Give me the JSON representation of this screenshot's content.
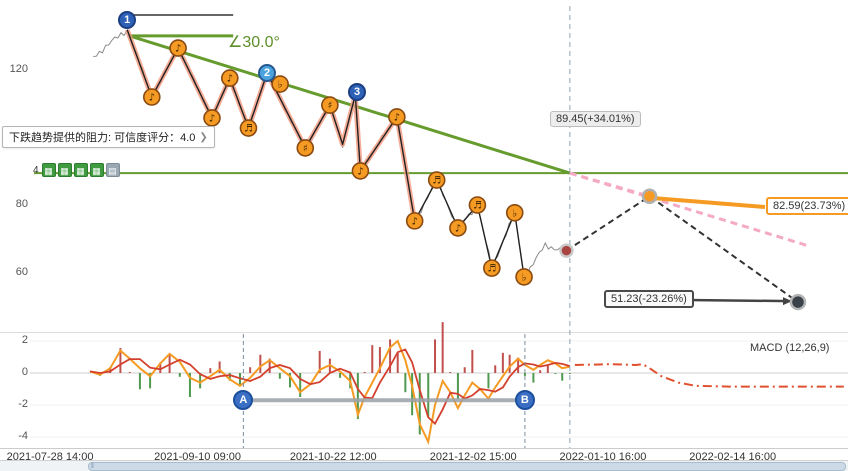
{
  "tooltip": {
    "text": "下跌趋势提供的阻力: 可信度评分：4.0"
  },
  "toolbar": {
    "count": "4",
    "icons": [
      "▦",
      "▦",
      "▦",
      "▦",
      "▤"
    ]
  },
  "icons": {
    "expand_arrow": "❯",
    "grip": "‖"
  },
  "labels": {
    "angle": "∠30.0°",
    "level": "89.45(+34.01%)",
    "target_mid": "82.59(23.73%)",
    "target_low": "51.23(-23.26%)",
    "macd": "MACD (12,26,9)"
  },
  "markers": {
    "m1": "1",
    "m2": "2",
    "m3": "3",
    "a": "A",
    "b": "B"
  },
  "chart_data": {
    "type": "line",
    "x_axis": {
      "ticks": [
        {
          "label": "2021-07-28 14:00",
          "x": 0.059
        },
        {
          "label": "2021-09-10 09:00",
          "x": 0.233
        },
        {
          "label": "2021-10-22 12:00",
          "x": 0.393
        },
        {
          "label": "2021-12-02 15:00",
          "x": 0.558
        },
        {
          "label": "2022-01-10 16:00",
          "x": 0.711
        },
        {
          "label": "2022-02-14 16:00",
          "x": 0.864
        }
      ]
    },
    "main_panel": {
      "ylim": [
        43,
        141
      ],
      "yticks": [
        120,
        80,
        60
      ],
      "resistance_level": 89.45,
      "trend_angle_deg": 30.0,
      "trend_line": {
        "x1": 0.153,
        "p1": 130.1,
        "x2": 0.672,
        "p2": 89.45
      },
      "angle_ref_line": {
        "x1": 0.153,
        "x2": 0.275,
        "p": 130.1
      },
      "peak_ref_line": {
        "x1": 0.15,
        "x2": 0.275,
        "p": 136.3
      },
      "price_start": {
        "x": 0.11,
        "p": 124.0
      },
      "zigzag": [
        [
          0.15,
          131.9,
          ""
        ],
        [
          0.179,
          112.0,
          "♪"
        ],
        [
          0.21,
          126.5,
          "♪"
        ],
        [
          0.25,
          105.8,
          "♪"
        ],
        [
          0.271,
          117.6,
          "♪"
        ],
        [
          0.293,
          102.8,
          "♬"
        ],
        [
          0.315,
          119.1,
          "♭"
        ],
        [
          0.36,
          96.9,
          "♯"
        ],
        [
          0.389,
          109.6,
          "♯"
        ],
        [
          0.404,
          98.0,
          ""
        ],
        [
          0.419,
          112.6,
          ""
        ],
        [
          0.425,
          90.1,
          "♪"
        ],
        [
          0.468,
          106.1,
          "♪"
        ],
        [
          0.489,
          75.3,
          "♪"
        ],
        [
          0.515,
          87.4,
          "♬"
        ],
        [
          0.54,
          73.2,
          "♪"
        ],
        [
          0.563,
          80.0,
          "♬"
        ],
        [
          0.58,
          61.3,
          "♬"
        ],
        [
          0.607,
          77.7,
          "♭"
        ],
        [
          0.618,
          58.7,
          "♭"
        ]
      ],
      "salmon_end_index": 13,
      "price_tail": [
        [
          0.643,
          68.0
        ],
        [
          0.668,
          66.5
        ]
      ],
      "markers": [
        {
          "label": "1",
          "x": 0.15,
          "p": 134.8,
          "color": "#2e62b8"
        },
        {
          "label": "2",
          "x": 0.315,
          "p": 119.1,
          "color": "#4aa3df"
        },
        {
          "label": "3",
          "x": 0.421,
          "p": 113.5,
          "color": "#2e62b8"
        }
      ],
      "current_point": {
        "x": 0.668,
        "p": 66.5
      },
      "divider_x": 0.672,
      "projections": {
        "apex": {
          "x": 0.672,
          "p": 89.45
        },
        "mid": {
          "x": 0.766,
          "p": 82.59
        },
        "low": {
          "x": 0.941,
          "p": 51.23
        },
        "pink_end": {
          "x": 0.952,
          "p": 68.0
        }
      }
    },
    "macd_panel": {
      "ylim": [
        -5,
        2.5
      ],
      "yticks": [
        2,
        0,
        -2,
        -4
      ],
      "x": [
        0.106,
        0.118,
        0.13,
        0.142,
        0.153,
        0.165,
        0.177,
        0.189,
        0.2,
        0.212,
        0.224,
        0.236,
        0.248,
        0.259,
        0.271,
        0.283,
        0.295,
        0.307,
        0.318,
        0.33,
        0.342,
        0.354,
        0.366,
        0.377,
        0.389,
        0.401,
        0.413,
        0.422,
        0.43,
        0.439,
        0.448,
        0.46,
        0.469,
        0.478,
        0.486,
        0.495,
        0.505,
        0.513,
        0.522,
        0.531,
        0.54,
        0.548,
        0.557,
        0.566,
        0.576,
        0.584,
        0.593,
        0.601,
        0.611,
        0.619,
        0.629,
        0.637,
        0.646,
        0.655,
        0.663,
        0.672
      ],
      "dif": [
        0.1,
        -0.1,
        0.3,
        1.4,
        0.9,
        0.3,
        -0.2,
        0.6,
        1.2,
        0.7,
        -0.3,
        -0.6,
        -0.2,
        0.2,
        -0.4,
        -0.8,
        -0.3,
        0.4,
        0.8,
        0.3,
        -0.2,
        -1.2,
        -0.7,
        0.2,
        0.5,
        0.1,
        -0.5,
        -2.6,
        -1.5,
        -0.6,
        0.3,
        1.6,
        2.0,
        0.8,
        -0.8,
        -3.2,
        -4.3,
        -2.0,
        -0.5,
        -1.2,
        -2.2,
        -1.4,
        -0.6,
        -1.0,
        -1.6,
        -0.9,
        -0.2,
        0.4,
        0.9,
        0.5,
        0.2,
        0.5,
        0.8,
        0.6,
        0.3,
        0.4
      ],
      "forecast_x": [
        0.678,
        0.72,
        0.75,
        0.758,
        0.766,
        0.78,
        0.8,
        0.82,
        0.86,
        0.92,
        0.995
      ],
      "forecast": [
        0.5,
        0.55,
        0.5,
        0.55,
        0.3,
        -0.2,
        -0.6,
        -0.8,
        -0.85,
        -0.85,
        -0.85
      ],
      "a_x": 0.287,
      "b_x": 0.619,
      "ab_value": -1.7
    }
  }
}
